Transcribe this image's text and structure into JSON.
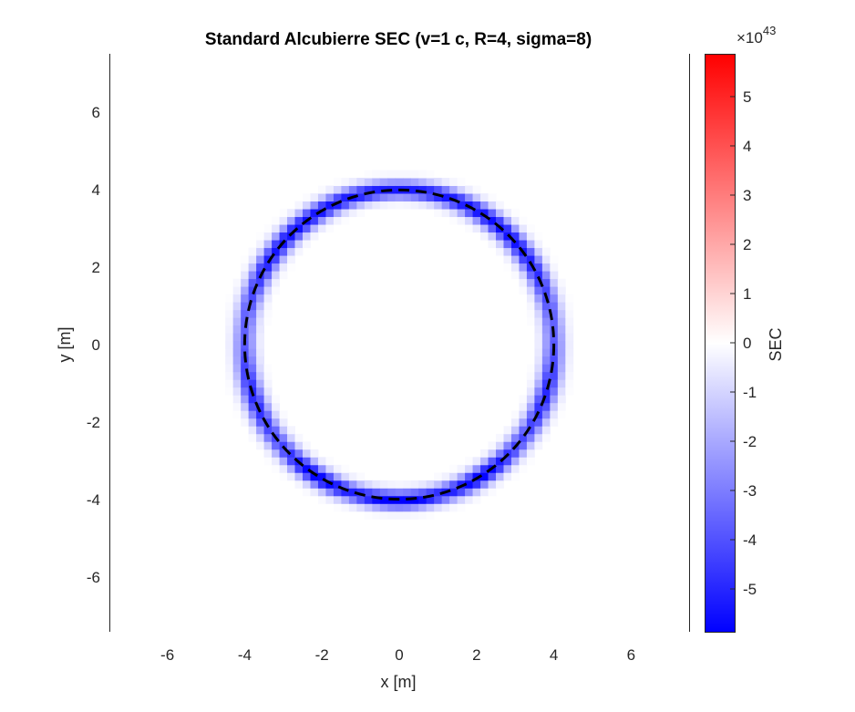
{
  "chart_data": {
    "type": "heatmap",
    "title": "Standard Alcubierre SEC (v=1 c, R=4, sigma=8)",
    "xlabel": "x [m]",
    "ylabel": "y [m]",
    "xlim": [
      -7.5,
      7.5
    ],
    "ylim": [
      -7.5,
      7.5
    ],
    "xticks": [
      -6,
      -4,
      -2,
      0,
      2,
      4,
      6
    ],
    "yticks": [
      -6,
      -4,
      -2,
      0,
      2,
      4,
      6
    ],
    "grid_spacing": 0.2,
    "bubble_radius": 4,
    "overlay": {
      "type": "dashed-circle",
      "radius": 4,
      "color": "#000000"
    },
    "colorbar": {
      "label": "SEC",
      "exponent_label": "×10",
      "exponent": "43",
      "clim": [
        -5.87,
        5.87
      ],
      "ticks": [
        -5,
        -4,
        -3,
        -2,
        -1,
        0,
        1,
        2,
        3,
        4,
        5
      ],
      "colormap": [
        "#0000ff",
        "#ffffff",
        "#ff0000"
      ]
    },
    "min_value": -5.87,
    "max_value": 0
  }
}
